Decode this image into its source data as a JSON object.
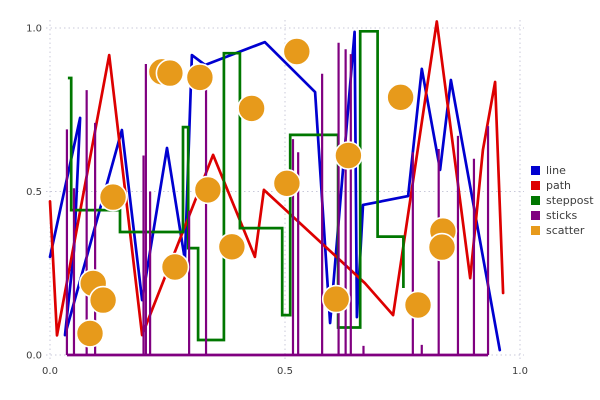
{
  "figure": {
    "background": "#ffffff"
  },
  "axes": {
    "x_ticks": [
      {
        "label": "0.0",
        "value": 0
      },
      {
        "label": "0.5",
        "value": 0.5
      },
      {
        "label": "1.0",
        "value": 1
      }
    ],
    "y_ticks": [
      {
        "label": "0.0",
        "value": 0
      },
      {
        "label": "0.5",
        "value": 0.5
      },
      {
        "label": "1.0",
        "value": 1
      }
    ],
    "grid": true,
    "grid_color": "#c9c9da",
    "tick_color": "#3c3c3c"
  },
  "legend": {
    "position": "right",
    "frame": false,
    "items": [
      {
        "label": "line",
        "color": "#0000d0"
      },
      {
        "label": "path",
        "color": "#dd0000"
      },
      {
        "label": "steppost",
        "color": "#007700"
      },
      {
        "label": "sticks",
        "color": "#800080"
      },
      {
        "label": "scatter",
        "color": "#e79a1b"
      }
    ]
  },
  "chart_data": {
    "type": "line",
    "title": "",
    "xlabel": "",
    "ylabel": "",
    "xlim": [
      0,
      1
    ],
    "ylim": [
      0,
      1
    ],
    "grid": "dotted",
    "legend_position": "center-right",
    "series": [
      {
        "name": "line",
        "type": "line",
        "color": "#0000d0",
        "linewidth": 2.7,
        "points": [
          [
            0.0,
            0.3
          ],
          [
            0.064,
            0.725
          ],
          [
            0.051,
            0.321
          ],
          [
            0.032,
            0.061
          ],
          [
            0.153,
            0.688
          ],
          [
            0.196,
            0.168
          ],
          [
            0.249,
            0.633
          ],
          [
            0.287,
            0.291
          ],
          [
            0.302,
            0.917
          ],
          [
            0.33,
            0.887
          ],
          [
            0.457,
            0.957
          ],
          [
            0.564,
            0.804
          ],
          [
            0.596,
            0.098
          ],
          [
            0.648,
            0.988
          ],
          [
            0.653,
            0.116
          ],
          [
            0.666,
            0.459
          ],
          [
            0.762,
            0.486
          ],
          [
            0.791,
            0.875
          ],
          [
            0.83,
            0.566
          ],
          [
            0.853,
            0.841
          ],
          [
            0.957,
            0.015
          ]
        ]
      },
      {
        "name": "path",
        "type": "line",
        "color": "#dd0000",
        "linewidth": 2.7,
        "points": [
          [
            0.0,
            0.47
          ],
          [
            0.015,
            0.06
          ],
          [
            0.126,
            0.917
          ],
          [
            0.196,
            0.061
          ],
          [
            0.347,
            0.612
          ],
          [
            0.436,
            0.3
          ],
          [
            0.455,
            0.505
          ],
          [
            0.67,
            0.22
          ],
          [
            0.73,
            0.122
          ],
          [
            0.823,
            1.02
          ],
          [
            0.894,
            0.235
          ],
          [
            0.921,
            0.627
          ],
          [
            0.947,
            0.835
          ],
          [
            0.964,
            0.19
          ]
        ]
      },
      {
        "name": "steppost",
        "type": "step-post",
        "color": "#007700",
        "linewidth": 2.7,
        "points": [
          [
            0.038,
            0.847
          ],
          [
            0.045,
            0.443
          ],
          [
            0.149,
            0.376
          ],
          [
            0.283,
            0.697
          ],
          [
            0.294,
            0.327
          ],
          [
            0.315,
            0.046
          ],
          [
            0.37,
            0.923
          ],
          [
            0.404,
            0.388
          ],
          [
            0.494,
            0.122
          ],
          [
            0.511,
            0.673
          ],
          [
            0.613,
            0.084
          ],
          [
            0.66,
            0.99
          ],
          [
            0.697,
            0.362
          ],
          [
            0.752,
            0.205
          ]
        ]
      },
      {
        "name": "sticks",
        "type": "stem",
        "color": "#800080",
        "linewidth": 2.2,
        "baseline": 0,
        "points": [
          [
            0.036,
            0.69
          ],
          [
            0.051,
            0.51
          ],
          [
            0.078,
            0.81
          ],
          [
            0.096,
            0.71
          ],
          [
            0.199,
            0.61
          ],
          [
            0.204,
            0.89
          ],
          [
            0.213,
            0.5
          ],
          [
            0.296,
            0.44
          ],
          [
            0.332,
            0.82
          ],
          [
            0.517,
            0.66
          ],
          [
            0.528,
            0.62
          ],
          [
            0.579,
            0.86
          ],
          [
            0.614,
            0.955
          ],
          [
            0.629,
            0.935
          ],
          [
            0.64,
            0.92
          ],
          [
            0.667,
            0.028
          ],
          [
            0.772,
            0.62
          ],
          [
            0.791,
            0.031
          ],
          [
            0.827,
            0.63
          ],
          [
            0.868,
            0.67
          ],
          [
            0.902,
            0.6
          ],
          [
            0.932,
            0.7
          ]
        ]
      },
      {
        "name": "scatter",
        "type": "scatter",
        "color": "#e79a1b",
        "marker_edge": "#ffffff",
        "marker_radius_px": 13.5,
        "points": [
          [
            0.238,
            0.866
          ],
          [
            0.255,
            0.862
          ],
          [
            0.319,
            0.849
          ],
          [
            0.429,
            0.754
          ],
          [
            0.525,
            0.928
          ],
          [
            0.746,
            0.788
          ],
          [
            0.134,
            0.483
          ],
          [
            0.336,
            0.505
          ],
          [
            0.504,
            0.525
          ],
          [
            0.635,
            0.61
          ],
          [
            0.092,
            0.219
          ],
          [
            0.113,
            0.168
          ],
          [
            0.085,
            0.066
          ],
          [
            0.266,
            0.269
          ],
          [
            0.387,
            0.331
          ],
          [
            0.609,
            0.171
          ],
          [
            0.783,
            0.153
          ],
          [
            0.836,
            0.379
          ],
          [
            0.834,
            0.33
          ]
        ]
      }
    ]
  }
}
